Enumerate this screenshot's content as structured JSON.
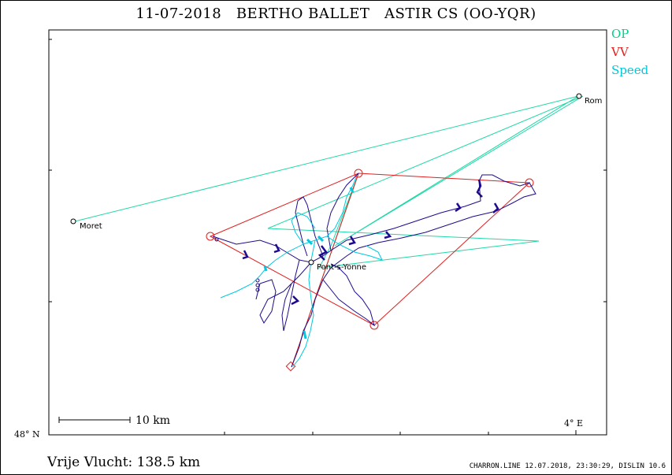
{
  "header": {
    "title": "11-07-2018   BERTHO BALLET   ASTIR CS (OO-YQR)"
  },
  "legend": [
    {
      "label": "OP",
      "color": "#00d08a"
    },
    {
      "label": "VV",
      "color": "#e02020"
    },
    {
      "label": "Speed",
      "color": "#00c8d8"
    }
  ],
  "map": {
    "axis_labels": {
      "lat": "48° N",
      "lon": "4° E"
    },
    "scale_label": "10 km",
    "places": [
      {
        "name": "Rom",
        "x": 734,
        "y": 122
      },
      {
        "name": "Moret",
        "x": 93,
        "y": 281
      },
      {
        "name": "Pont-s-Yonne",
        "x": 395,
        "y": 333
      }
    ],
    "colors": {
      "op": "#20d8a8",
      "vv": "#e02020",
      "track": "#1e0a8c",
      "speed": "#00c8e0"
    }
  },
  "footer": {
    "distance": "Vrije Vlucht:  138.5 km",
    "credit": "CHARRON.LINE 12.07.2018, 23:30:29, DISLIN 10.6"
  }
}
